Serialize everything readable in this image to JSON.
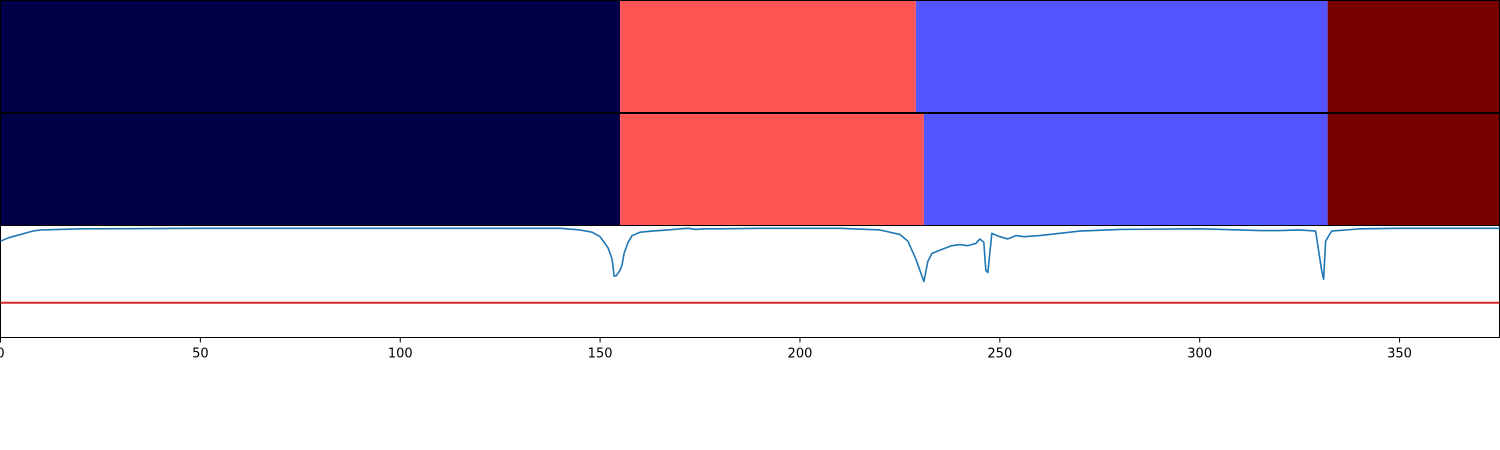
{
  "chart_data": {
    "type": "segmentation",
    "xlim": [
      0,
      375
    ],
    "xticks": [
      0,
      50,
      100,
      150,
      200,
      250,
      300,
      350
    ],
    "xtick_labels": [
      "0",
      "50",
      "100",
      "150",
      "200",
      "250",
      "300",
      "350"
    ],
    "rows": [
      {
        "segments": [
          {
            "start": 0,
            "end": 155,
            "color": "#000048"
          },
          {
            "start": 155,
            "end": 229,
            "color": "#ff5555"
          },
          {
            "start": 229,
            "end": 332,
            "color": "#5555ff"
          },
          {
            "start": 332,
            "end": 375,
            "color": "#7a0000"
          }
        ]
      },
      {
        "segments": [
          {
            "start": 0,
            "end": 155,
            "color": "#000048"
          },
          {
            "start": 155,
            "end": 231,
            "color": "#ff5555"
          },
          {
            "start": 231,
            "end": 332,
            "color": "#5555ff"
          },
          {
            "start": 332,
            "end": 375,
            "color": "#7a0000"
          }
        ]
      }
    ],
    "line_panel": {
      "ylim": [
        0,
        1
      ],
      "threshold": {
        "value": 0.31,
        "color": "#d62728"
      },
      "series": {
        "color": "#1f77b4",
        "points": [
          [
            0,
            0.86
          ],
          [
            2,
            0.89
          ],
          [
            4,
            0.91
          ],
          [
            6,
            0.93
          ],
          [
            8,
            0.95
          ],
          [
            10,
            0.96
          ],
          [
            15,
            0.965
          ],
          [
            20,
            0.97
          ],
          [
            50,
            0.975
          ],
          [
            100,
            0.975
          ],
          [
            140,
            0.975
          ],
          [
            145,
            0.96
          ],
          [
            148,
            0.94
          ],
          [
            150,
            0.9
          ],
          [
            152,
            0.8
          ],
          [
            153,
            0.7
          ],
          [
            153.5,
            0.55
          ],
          [
            154,
            0.55
          ],
          [
            155,
            0.6
          ],
          [
            155.5,
            0.65
          ],
          [
            156,
            0.75
          ],
          [
            157,
            0.85
          ],
          [
            158,
            0.91
          ],
          [
            160,
            0.94
          ],
          [
            163,
            0.95
          ],
          [
            167,
            0.96
          ],
          [
            170,
            0.97
          ],
          [
            172,
            0.975
          ],
          [
            174,
            0.965
          ],
          [
            176,
            0.97
          ],
          [
            180,
            0.97
          ],
          [
            190,
            0.975
          ],
          [
            210,
            0.975
          ],
          [
            220,
            0.96
          ],
          [
            225,
            0.92
          ],
          [
            227,
            0.86
          ],
          [
            229,
            0.7
          ],
          [
            230,
            0.6
          ],
          [
            231,
            0.5
          ],
          [
            232,
            0.68
          ],
          [
            233,
            0.75
          ],
          [
            235,
            0.78
          ],
          [
            238,
            0.82
          ],
          [
            240,
            0.83
          ],
          [
            242,
            0.82
          ],
          [
            244,
            0.84
          ],
          [
            245,
            0.88
          ],
          [
            246,
            0.85
          ],
          [
            246.5,
            0.6
          ],
          [
            247,
            0.58
          ],
          [
            248,
            0.93
          ],
          [
            250,
            0.9
          ],
          [
            252,
            0.88
          ],
          [
            254,
            0.91
          ],
          [
            256,
            0.9
          ],
          [
            260,
            0.91
          ],
          [
            265,
            0.93
          ],
          [
            270,
            0.95
          ],
          [
            280,
            0.965
          ],
          [
            300,
            0.97
          ],
          [
            310,
            0.96
          ],
          [
            315,
            0.955
          ],
          [
            320,
            0.955
          ],
          [
            325,
            0.96
          ],
          [
            329,
            0.95
          ],
          [
            330.5,
            0.6
          ],
          [
            331,
            0.52
          ],
          [
            331.5,
            0.86
          ],
          [
            333,
            0.95
          ],
          [
            340,
            0.97
          ],
          [
            350,
            0.975
          ],
          [
            375,
            0.975
          ]
        ]
      }
    }
  }
}
